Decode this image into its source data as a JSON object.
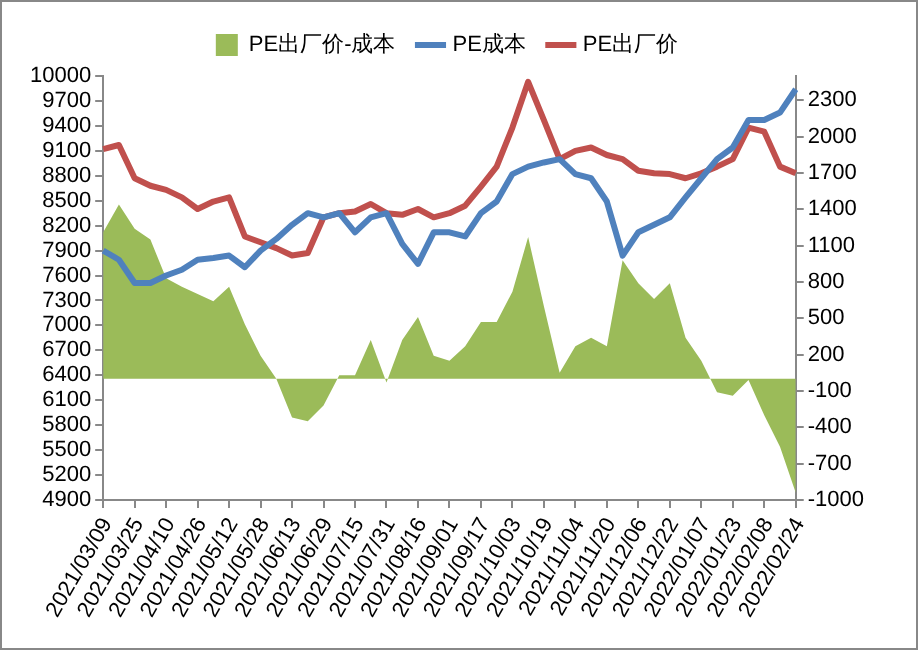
{
  "chart_data": {
    "type": "line",
    "legend": "top",
    "grid": false,
    "marker": "none",
    "categories": [
      "2021/03/09",
      null,
      "2021/03/25",
      null,
      "2021/04/10",
      null,
      "2021/04/26",
      null,
      "2021/05/12",
      null,
      "2021/05/28",
      null,
      "2021/06/13",
      null,
      "2021/06/29",
      null,
      "2021/07/15",
      null,
      "2021/07/31",
      null,
      "2021/08/16",
      null,
      "2021/09/01",
      null,
      "2021/09/17",
      null,
      "2021/10/03",
      null,
      "2021/10/19",
      null,
      "2021/11/04",
      null,
      "2021/11/20",
      null,
      "2021/12/06",
      null,
      "2021/12/22",
      null,
      "2022/01/07",
      null,
      "2022/01/23",
      null,
      "2022/02/08",
      null,
      "2022/02/24"
    ],
    "ylim": [
      4900,
      10000
    ],
    "yticks": [
      4900,
      5200,
      5500,
      5800,
      6100,
      6400,
      6700,
      7000,
      7300,
      7600,
      7900,
      8200,
      8500,
      8800,
      9100,
      9400,
      9700,
      10000
    ],
    "y2lim": [
      -1000,
      2500
    ],
    "y2ticks": [
      -1000,
      -700,
      -400,
      -100,
      200,
      500,
      800,
      1100,
      1400,
      1700,
      2000,
      2300
    ],
    "series": [
      {
        "name": "PE出厂价-成本",
        "type": "area",
        "axis": "y2",
        "color": "#9bbb59",
        "values": [
          1210,
          1440,
          1240,
          1150,
          830,
          760,
          700,
          640,
          760,
          450,
          190,
          0,
          -320,
          -350,
          -220,
          30,
          30,
          320,
          -30,
          320,
          510,
          190,
          150,
          270,
          470,
          470,
          720,
          1170,
          600,
          50,
          270,
          340,
          270,
          980,
          790,
          660,
          790,
          340,
          150,
          -110,
          -140,
          -10,
          -300,
          -560,
          -940
        ]
      },
      {
        "name": "PE成本",
        "type": "line",
        "color": "#4f81bd",
        "values": [
          7900,
          7790,
          7510,
          7510,
          7600,
          7670,
          7790,
          7810,
          7840,
          7700,
          7900,
          8040,
          8210,
          8350,
          8300,
          8350,
          8120,
          8300,
          8350,
          7980,
          7740,
          8120,
          8120,
          8070,
          8350,
          8490,
          8820,
          8910,
          8960,
          9000,
          8820,
          8770,
          8490,
          7840,
          8120,
          8210,
          8300,
          8540,
          8770,
          9000,
          9140,
          9470,
          9470,
          9560,
          9840
        ]
      },
      {
        "name": "PE出厂价",
        "type": "line",
        "color": "#c0504d",
        "values": [
          9120,
          9170,
          8770,
          8680,
          8630,
          8540,
          8400,
          8490,
          8540,
          8070,
          8000,
          7930,
          7840,
          7870,
          8300,
          8350,
          8370,
          8460,
          8350,
          8330,
          8400,
          8300,
          8350,
          8440,
          8670,
          8910,
          9380,
          9930,
          9470,
          9000,
          9100,
          9140,
          9050,
          9000,
          8860,
          8830,
          8820,
          8770,
          8830,
          8910,
          9000,
          9380,
          9330,
          8910,
          8830
        ]
      }
    ]
  }
}
